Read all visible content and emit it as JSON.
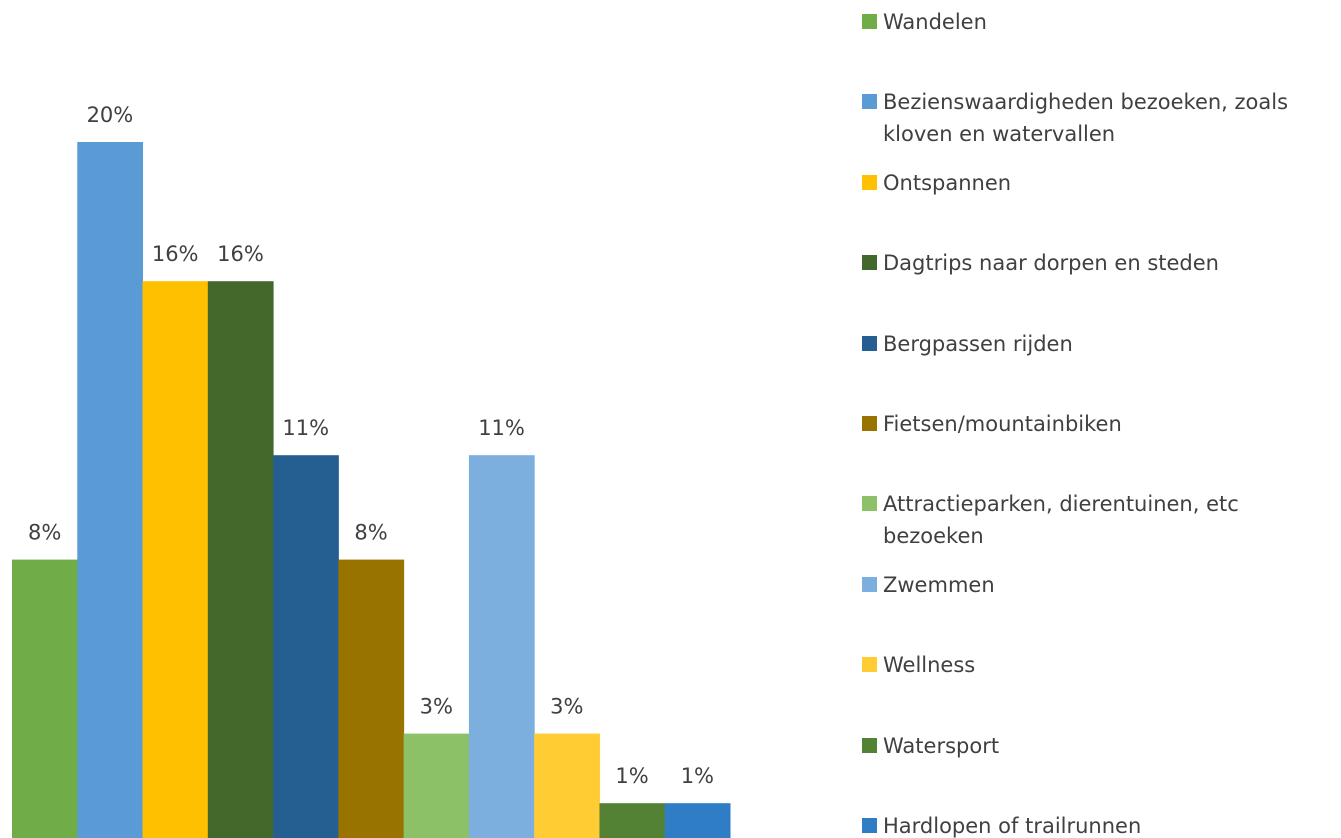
{
  "chart_data": {
    "type": "bar",
    "categories": [
      "Wandelen",
      "Bezienswaardigheden bezoeken, zoals kloven en watervallen",
      "Ontspannen",
      "Dagtrips naar dorpen en steden",
      "Bergpassen rijden",
      "Fietsen/mountainbiken",
      "Attractieparken, dierentuinen, etc bezoeken",
      "Zwemmen",
      "Wellness",
      "Watersport",
      "Hardlopen of trailrunnen"
    ],
    "values": [
      8,
      20,
      16,
      16,
      11,
      8,
      3,
      11,
      3,
      1,
      1
    ],
    "value_labels": [
      "8%",
      "20%",
      "16%",
      "16%",
      "11%",
      "8%",
      "3%",
      "11%",
      "3%",
      "1%",
      "1%"
    ],
    "colors": [
      "#70ad47",
      "#5b9bd5",
      "#ffc000",
      "#43682b",
      "#255e91",
      "#997300",
      "#8cc168",
      "#7cafdd",
      "#ffcd33",
      "#548235",
      "#2f7dc4"
    ],
    "legend": "right"
  }
}
